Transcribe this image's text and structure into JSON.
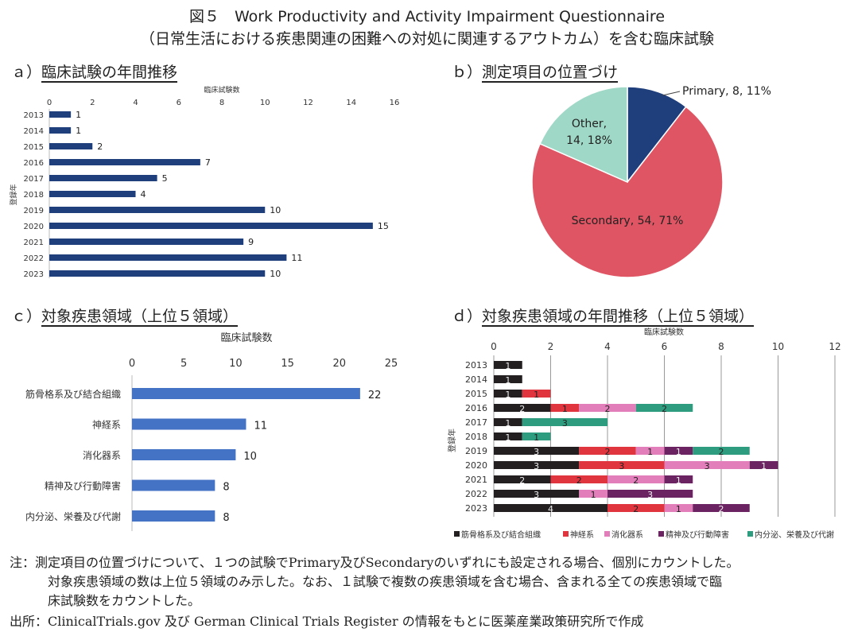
{
  "title": {
    "line1": "図５　Work Productivity and Activity Impairment Questionnaire",
    "line2": "（日常生活における疾患関連の困難への対処に関連するアウトカム）を含む臨床試験"
  },
  "notes": {
    "line1": "注：測定項目の位置づけについて、１つの試験でPrimary及びSecondaryのいずれにも設定される場合、個別にカウントした。",
    "line2": "対象疾患領域の数は上位５領域のみ示した。なお、１試験で複数の疾患領域を含む場合、含まれる全ての疾患領域で臨",
    "line3": "床試験数をカウントした。",
    "source": "出所：ClinicalTrials.gov 及び German Clinical Trials Register の情報をもとに医薬産業政策研究所で作成"
  },
  "chart_data": [
    {
      "id": "a",
      "heading_prefix": "ａ）",
      "heading": "臨床試験の年間推移",
      "type": "bar",
      "orientation": "horizontal",
      "xlabel": "臨床試験数",
      "ylabel": "登録年",
      "xlim": [
        0,
        16
      ],
      "xticks": [
        0,
        2,
        4,
        6,
        8,
        10,
        12,
        14,
        16
      ],
      "grid": false,
      "categories": [
        "2013",
        "2014",
        "2015",
        "2016",
        "2017",
        "2018",
        "2019",
        "2020",
        "2021",
        "2022",
        "2023"
      ],
      "values": [
        1,
        1,
        2,
        7,
        5,
        4,
        10,
        15,
        9,
        11,
        10
      ],
      "color": "#1f3e7c"
    },
    {
      "id": "b",
      "heading_prefix": "ｂ）",
      "heading": "測定項目の位置づけ",
      "type": "pie",
      "slices": [
        {
          "label": "Primary",
          "value": 8,
          "percent": "11%",
          "color": "#1f3e7c"
        },
        {
          "label": "Secondary",
          "value": 54,
          "percent": "71%",
          "color": "#e05563"
        },
        {
          "label": "Other",
          "value": 14,
          "percent": "18%",
          "color": "#9fd8c6"
        }
      ]
    },
    {
      "id": "c",
      "heading_prefix": "ｃ）",
      "heading": "対象疾患領域（上位５領域）",
      "type": "bar",
      "orientation": "horizontal",
      "xlabel": "臨床試験数",
      "xlim": [
        0,
        25
      ],
      "xticks": [
        0,
        5,
        10,
        15,
        20,
        25
      ],
      "grid": false,
      "categories": [
        "筋骨格系及び結合組織",
        "神経系",
        "消化器系",
        "精神及び行動障害",
        "内分泌、栄養及び代謝"
      ],
      "values": [
        22,
        11,
        10,
        8,
        8
      ],
      "color": "#4472c4"
    },
    {
      "id": "d",
      "heading_prefix": "ｄ）",
      "heading": "対象疾患領域の年間推移（上位５領域）",
      "type": "bar",
      "orientation": "horizontal",
      "stacked": true,
      "xlabel": "臨床試験数",
      "ylabel": "登録年",
      "xlim": [
        0,
        12
      ],
      "xticks": [
        0,
        2,
        4,
        6,
        8,
        10,
        12
      ],
      "grid": true,
      "legend": "bottom",
      "categories": [
        "2013",
        "2014",
        "2015",
        "2016",
        "2017",
        "2018",
        "2019",
        "2020",
        "2021",
        "2022",
        "2023"
      ],
      "series": [
        {
          "name": "筋骨格系及び結合組織",
          "color": "#231f20",
          "values": [
            1,
            1,
            1,
            2,
            1,
            1,
            3,
            3,
            2,
            3,
            4
          ]
        },
        {
          "name": "神経系",
          "color": "#e0343f",
          "values": [
            0,
            0,
            1,
            1,
            0,
            0,
            2,
            3,
            2,
            0,
            2
          ]
        },
        {
          "name": "消化器系",
          "color": "#e27fba",
          "values": [
            0,
            0,
            0,
            2,
            0,
            0,
            1,
            3,
            2,
            1,
            1
          ]
        },
        {
          "name": "精神及び行動障害",
          "color": "#6b2362",
          "values": [
            0,
            0,
            0,
            0,
            0,
            0,
            1,
            1,
            1,
            3,
            2
          ]
        },
        {
          "name": "内分泌、栄養及び代謝",
          "color": "#2e9c7e",
          "values": [
            0,
            0,
            0,
            2,
            3,
            1,
            2,
            0,
            0,
            0,
            0
          ]
        }
      ]
    }
  ]
}
